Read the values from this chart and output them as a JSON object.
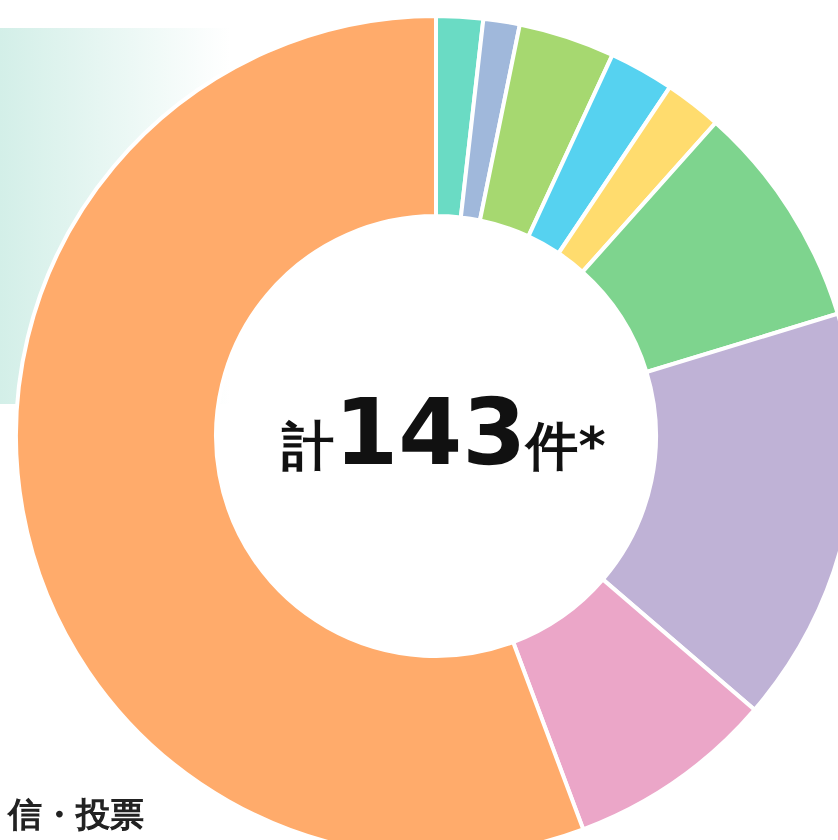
{
  "chart_data": {
    "type": "donut",
    "title": "計143件*",
    "categories": [
      null,
      null,
      null,
      null,
      null,
      null,
      null,
      null,
      null
    ],
    "values": [
      1.8,
      1.4,
      3.7,
      2.5,
      2.2,
      8.7,
      16.0,
      8.0,
      55.7
    ],
    "colors": [
      "#6adbc4",
      "#a0b8db",
      "#a6d870",
      "#56d2f0",
      "#ffdc6e",
      "#7ed48e",
      "#bfb2d6",
      "#eba6c8",
      "#ffab6b"
    ],
    "annotations": [
      "信・投票"
    ]
  }
}
